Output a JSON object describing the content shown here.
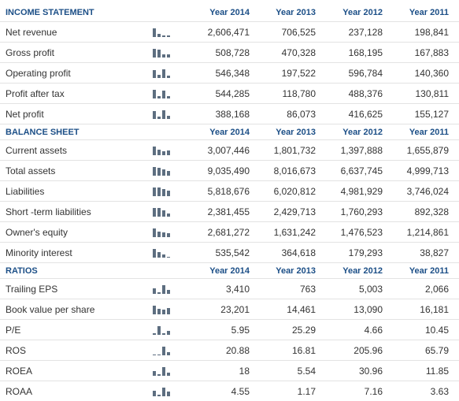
{
  "income_statement": {
    "header": {
      "title": "INCOME STATEMENT",
      "years": [
        "Year 2014",
        "Year 2013",
        "Year 2012",
        "Year 2011"
      ]
    },
    "rows": [
      {
        "label": "Net revenue",
        "values": [
          "2,606,471",
          "706,525",
          "237,128",
          "198,841"
        ]
      },
      {
        "label": "Gross profit",
        "values": [
          "508,728",
          "470,328",
          "168,195",
          "167,883"
        ]
      },
      {
        "label": "Operating profit",
        "values": [
          "546,348",
          "197,522",
          "596,784",
          "140,360"
        ]
      },
      {
        "label": "Profit after tax",
        "values": [
          "544,285",
          "118,780",
          "488,376",
          "130,811"
        ]
      },
      {
        "label": "Net profit",
        "values": [
          "388,168",
          "86,073",
          "416,625",
          "155,127"
        ]
      }
    ]
  },
  "balance_sheet": {
    "header": {
      "title": "BALANCE SHEET",
      "years": [
        "Year 2014",
        "Year 2013",
        "Year 2012",
        "Year 2011"
      ]
    },
    "rows": [
      {
        "label": "Current assets",
        "values": [
          "3,007,446",
          "1,801,732",
          "1,397,888",
          "1,655,879"
        ]
      },
      {
        "label": "Total assets",
        "values": [
          "9,035,490",
          "8,016,673",
          "6,637,745",
          "4,999,713"
        ]
      },
      {
        "label": "Liabilities",
        "values": [
          "5,818,676",
          "6,020,812",
          "4,981,929",
          "3,746,024"
        ]
      },
      {
        "label": "Short -term liabilities",
        "values": [
          "2,381,455",
          "2,429,713",
          "1,760,293",
          "892,328"
        ]
      },
      {
        "label": "Owner's equity",
        "values": [
          "2,681,272",
          "1,631,242",
          "1,476,523",
          "1,214,861"
        ]
      },
      {
        "label": "Minority interest",
        "values": [
          "535,542",
          "364,618",
          "179,293",
          "38,827"
        ]
      }
    ]
  },
  "ratios": {
    "header": {
      "title": "RATIOS",
      "years": [
        "Year 2014",
        "Year 2013",
        "Year 2012",
        "Year 2011"
      ]
    },
    "rows": [
      {
        "label": "Trailing EPS",
        "values": [
          "3,410",
          "763",
          "5,003",
          "2,066"
        ]
      },
      {
        "label": "Book value per share",
        "values": [
          "23,201",
          "14,461",
          "13,090",
          "16,181"
        ]
      },
      {
        "label": "P/E",
        "values": [
          "5.95",
          "25.29",
          "4.66",
          "10.45"
        ]
      },
      {
        "label": "ROS",
        "values": [
          "20.88",
          "16.81",
          "205.96",
          "65.79"
        ]
      },
      {
        "label": "ROEA",
        "values": [
          "18",
          "5.54",
          "30.96",
          "11.85"
        ]
      },
      {
        "label": "ROAA",
        "values": [
          "4.55",
          "1.17",
          "7.16",
          "3.63"
        ]
      }
    ]
  },
  "colors": {
    "header_text": "#1c4f87",
    "body_text": "#333333",
    "spark_bar": "#5d6e80"
  },
  "icons": {
    "row_chart": "mini-bar-chart-icon"
  }
}
